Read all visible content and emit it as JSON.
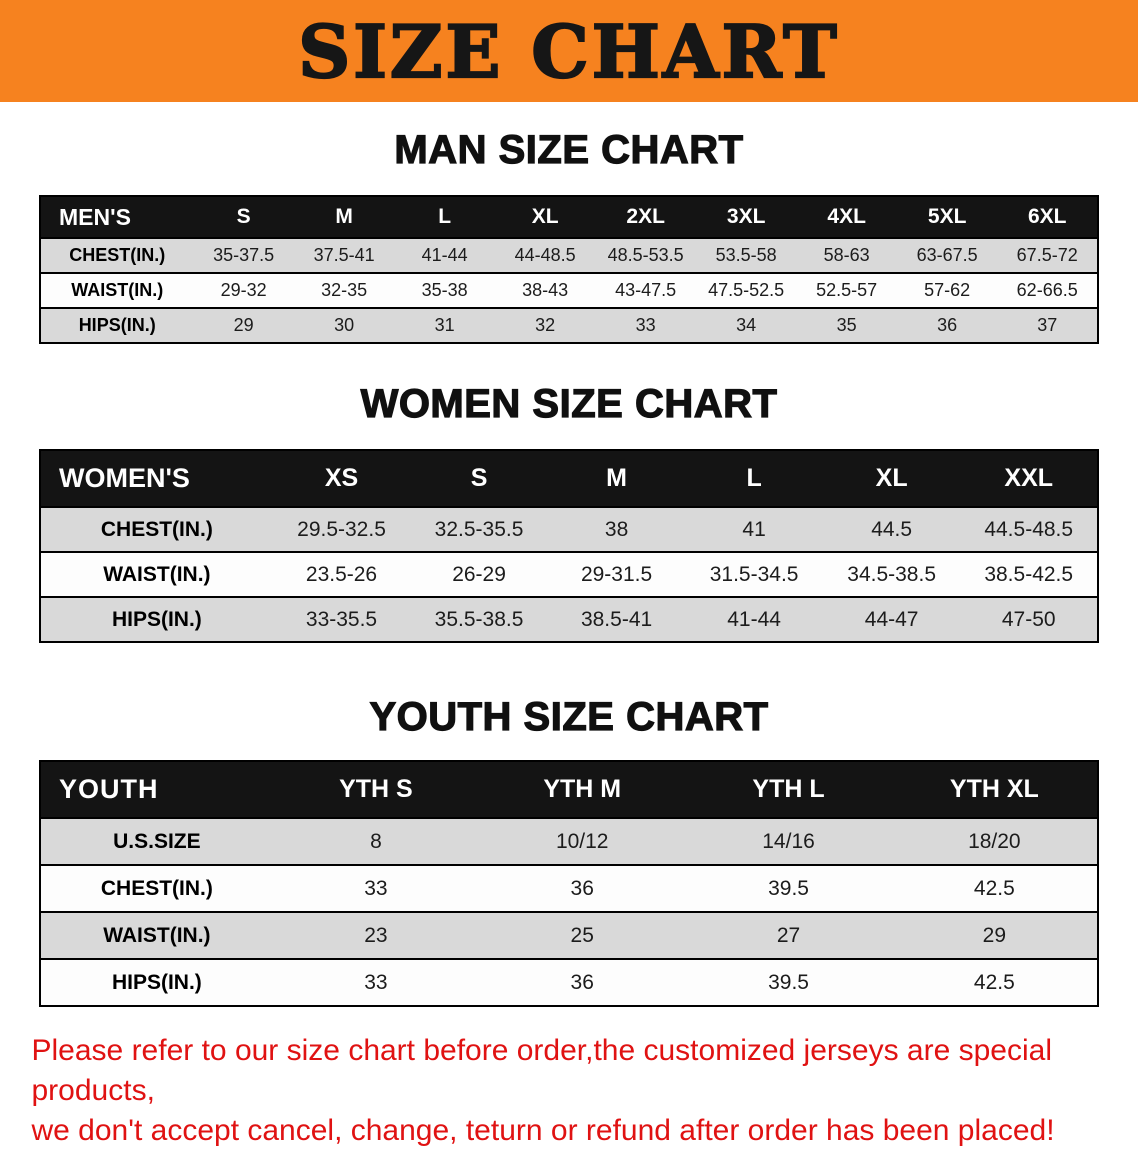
{
  "banner": {
    "title": "SIZE CHART",
    "bg_color": "#f6821f",
    "text_color": "#161616"
  },
  "chart_data": [
    {
      "type": "table",
      "title": "MAN SIZE CHART",
      "columns": [
        "MEN'S",
        "S",
        "M",
        "L",
        "XL",
        "2XL",
        "3XL",
        "4XL",
        "5XL",
        "6XL"
      ],
      "rows": [
        {
          "label": "CHEST(IN.)",
          "values": [
            "35-37.5",
            "37.5-41",
            "41-44",
            "44-48.5",
            "48.5-53.5",
            "53.5-58",
            "58-63",
            "63-67.5",
            "67.5-72"
          ]
        },
        {
          "label": "WAIST(IN.)",
          "values": [
            "29-32",
            "32-35",
            "35-38",
            "38-43",
            "43-47.5",
            "47.5-52.5",
            "52.5-57",
            "57-62",
            "62-66.5"
          ]
        },
        {
          "label": "HIPS(IN.)",
          "values": [
            "29",
            "30",
            "31",
            "32",
            "33",
            "34",
            "35",
            "36",
            "37"
          ]
        }
      ]
    },
    {
      "type": "table",
      "title": "WOMEN SIZE CHART",
      "columns": [
        "WOMEN'S",
        "XS",
        "S",
        "M",
        "L",
        "XL",
        "XXL"
      ],
      "rows": [
        {
          "label": "CHEST(IN.)",
          "values": [
            "29.5-32.5",
            "32.5-35.5",
            "38",
            "41",
            "44.5",
            "44.5-48.5"
          ]
        },
        {
          "label": "WAIST(IN.)",
          "values": [
            "23.5-26",
            "26-29",
            "29-31.5",
            "31.5-34.5",
            "34.5-38.5",
            "38.5-42.5"
          ]
        },
        {
          "label": "HIPS(IN.)",
          "values": [
            "33-35.5",
            "35.5-38.5",
            "38.5-41",
            "41-44",
            "44-47",
            "47-50"
          ]
        }
      ]
    },
    {
      "type": "table",
      "title": "YOUTH SIZE CHART",
      "columns": [
        "YOUTH",
        "YTH S",
        "YTH M",
        "YTH L",
        "YTH XL"
      ],
      "rows": [
        {
          "label": "U.S.SIZE",
          "values": [
            "8",
            "10/12",
            "14/16",
            "18/20"
          ]
        },
        {
          "label": "CHEST(IN.)",
          "values": [
            "33",
            "36",
            "39.5",
            "42.5"
          ]
        },
        {
          "label": "WAIST(IN.)",
          "values": [
            "23",
            "25",
            "27",
            "29"
          ]
        },
        {
          "label": "HIPS(IN.)",
          "values": [
            "33",
            "36",
            "39.5",
            "42.5"
          ]
        }
      ]
    }
  ],
  "disclaimer": {
    "color": "#e01212",
    "line1": "Please refer to our size chart before order,the customized jerseys are special products,",
    "line2": "we don't accept cancel, change, teturn or refund after order has been placed!"
  }
}
